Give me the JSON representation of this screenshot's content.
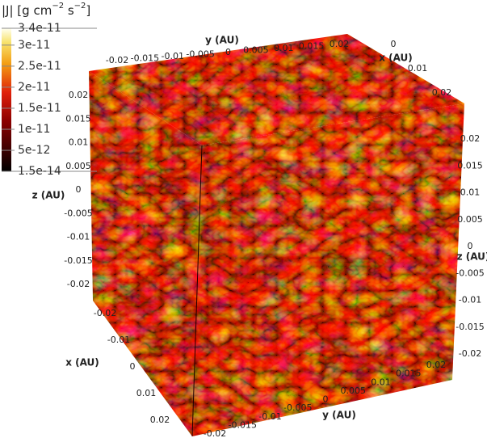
{
  "chart_data": {
    "type": "cube",
    "title_parts": [
      "|J| [g cm",
      "−2",
      " s",
      "−2",
      "]"
    ],
    "colorbar": {
      "clim": [
        1.5e-14,
        3.4e-11
      ],
      "ticks": [
        3.4e-11,
        3e-11,
        2.5e-11,
        2e-11,
        1.5e-11,
        1e-11,
        5e-12,
        1.5e-14
      ]
    },
    "axes": [
      {
        "label": "y (AU)",
        "lim": [
          -0.02,
          0.02
        ],
        "ticks": [
          -0.02,
          -0.015,
          -0.01,
          -0.005,
          0,
          0.005,
          0.01,
          0.015,
          0.02
        ]
      },
      {
        "label": "x (AU)",
        "lim": [
          -0.02,
          0.02
        ],
        "ticks": [
          0,
          0.01,
          0.02
        ]
      },
      {
        "label": "z (AU)",
        "lim": [
          -0.02,
          0.02
        ],
        "ticks": [
          0.02,
          0.015,
          0.01,
          0.005,
          0,
          -0.005,
          -0.01,
          -0.015,
          -0.02
        ]
      },
      {
        "label": "z (AU)",
        "lim": [
          -0.02,
          0.02
        ],
        "ticks": [
          0.02,
          0.015,
          0.01,
          0.005,
          0,
          -0.005,
          -0.01,
          -0.015,
          -0.02
        ]
      },
      {
        "label": "x (AU)",
        "lim": [
          -0.02,
          0.02
        ],
        "ticks": [
          -0.02,
          -0.01,
          0,
          0.01,
          0.02
        ]
      },
      {
        "label": "y (AU)",
        "lim": [
          -0.02,
          0.02
        ],
        "ticks": [
          -0.02,
          -0.015,
          -0.01,
          -0.005,
          0,
          0.005,
          0.01,
          0.015,
          0.02
        ]
      }
    ]
  }
}
